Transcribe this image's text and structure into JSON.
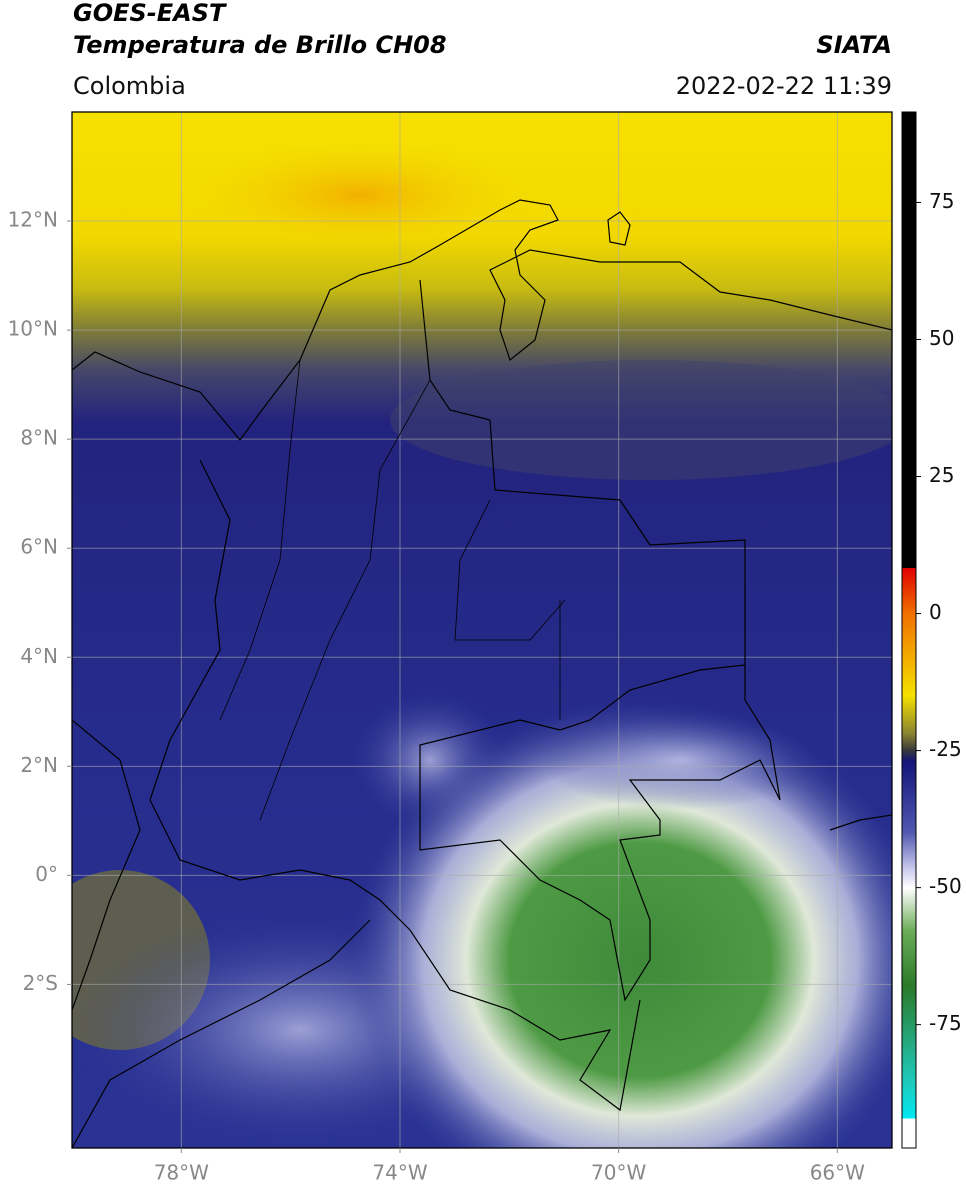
{
  "header": {
    "title": "GOES-EAST",
    "subtitle": "Temperatura de Brillo CH08",
    "source": "SIATA",
    "region": "Colombia",
    "datetime": "2022-02-22 11:39"
  },
  "map": {
    "xlim": [
      -80,
      -65
    ],
    "ylim": [
      -5,
      14
    ],
    "xticks": [
      {
        "value": -78,
        "label": "78°W"
      },
      {
        "value": -74,
        "label": "74°W"
      },
      {
        "value": -70,
        "label": "70°W"
      },
      {
        "value": -66,
        "label": "66°W"
      }
    ],
    "yticks": [
      {
        "value": 12,
        "label": "12°N"
      },
      {
        "value": 10,
        "label": "10°N"
      },
      {
        "value": 8,
        "label": "8°N"
      },
      {
        "value": 6,
        "label": "6°N"
      },
      {
        "value": 4,
        "label": "4°N"
      },
      {
        "value": 2,
        "label": "2°N"
      },
      {
        "value": 0,
        "label": "0°"
      },
      {
        "value": -2,
        "label": "2°S"
      }
    ],
    "grid": true
  },
  "colorbar": {
    "lim": [
      -97.5,
      91.5
    ],
    "ticks": [
      75,
      50,
      25,
      0,
      -25,
      -50,
      -75
    ]
  }
}
